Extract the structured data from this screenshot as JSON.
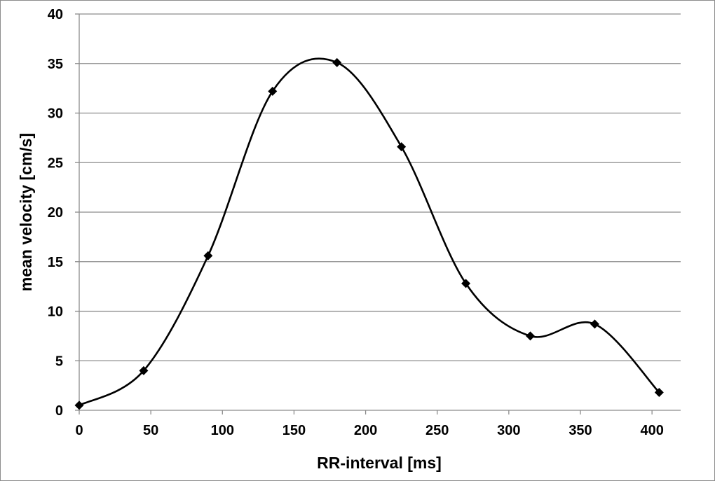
{
  "chart_data": {
    "type": "line",
    "title": "",
    "xlabel": "RR-interval [ms]",
    "ylabel": "mean velocity [cm/s]",
    "xlim": [
      0,
      420
    ],
    "ylim": [
      0,
      40
    ],
    "x_ticks": [
      0,
      50,
      100,
      150,
      200,
      250,
      300,
      350,
      400
    ],
    "y_ticks": [
      0,
      5,
      10,
      15,
      20,
      25,
      30,
      35,
      40
    ],
    "grid": "horizontal",
    "legend": "none",
    "line_color": "#000000",
    "grid_color": "#8c8c8c",
    "series": [
      {
        "name": "mean velocity",
        "marker": "diamond",
        "smooth": true,
        "x": [
          0,
          45,
          90,
          135,
          180,
          225,
          270,
          315,
          360,
          405
        ],
        "y": [
          0.5,
          4.0,
          15.6,
          32.2,
          35.1,
          26.6,
          12.8,
          7.5,
          8.7,
          1.8
        ]
      }
    ]
  }
}
